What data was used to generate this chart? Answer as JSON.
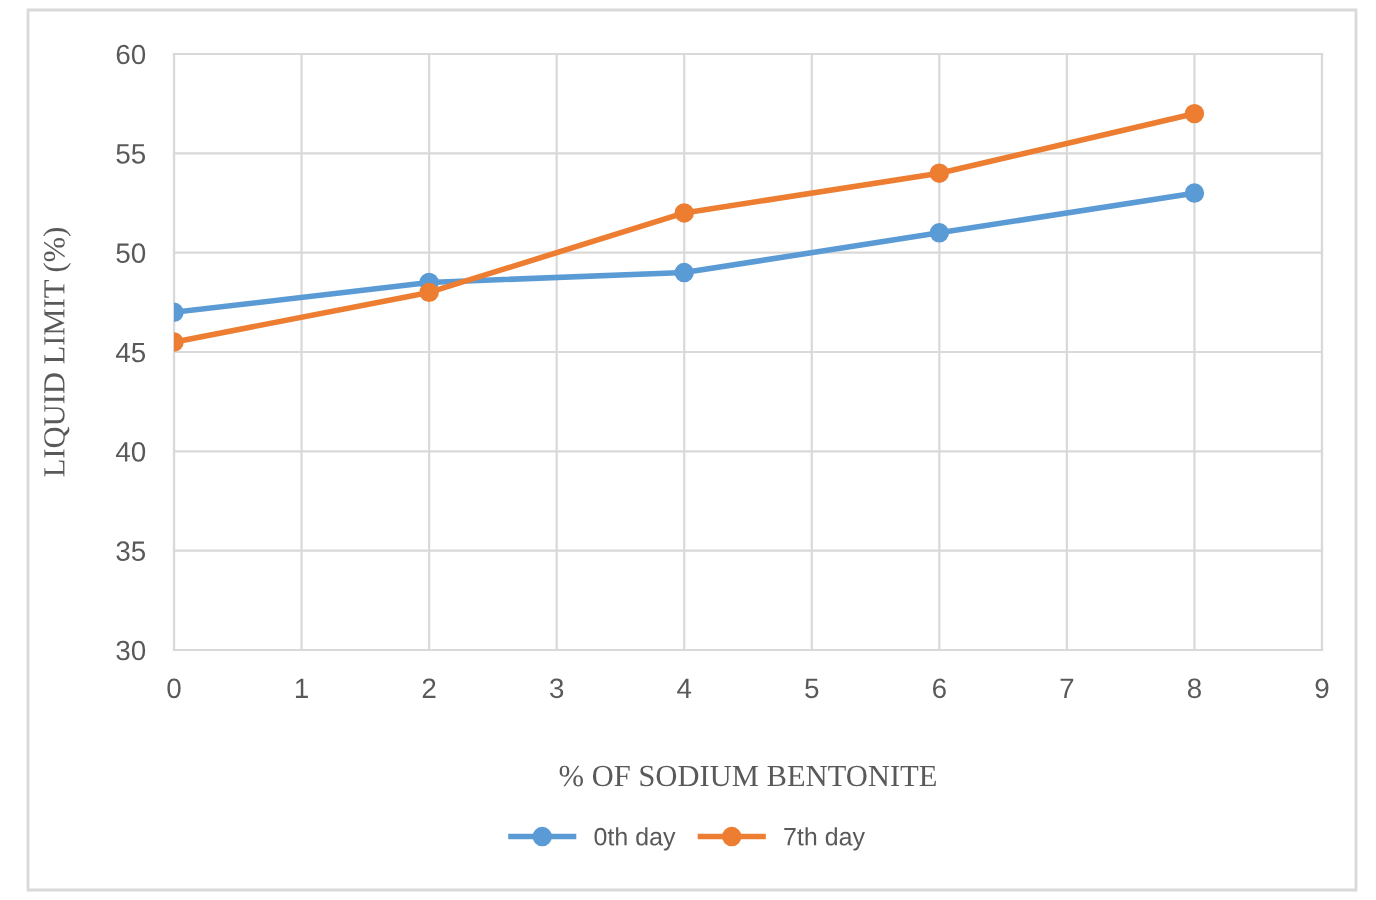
{
  "chart_data": {
    "type": "line",
    "xlabel": "% OF SODIUM BENTONITE",
    "ylabel": "LIQUID LIMIT (%)",
    "x": [
      0,
      2,
      4,
      6,
      8
    ],
    "series": [
      {
        "name": "0th day",
        "color": "#5b9bd5",
        "values": [
          47,
          48.5,
          49,
          51,
          53
        ]
      },
      {
        "name": "7th day",
        "color": "#ed7d31",
        "values": [
          45.5,
          48,
          52,
          54,
          57
        ]
      }
    ],
    "xlim": [
      0,
      9
    ],
    "xticks": [
      0,
      1,
      2,
      3,
      4,
      5,
      6,
      7,
      8,
      9
    ],
    "ylim": [
      30,
      60
    ],
    "yticks": [
      30,
      35,
      40,
      45,
      50,
      55,
      60
    ],
    "grid": true,
    "legend": "bottom",
    "marker": "circle",
    "line_style": "solid"
  }
}
